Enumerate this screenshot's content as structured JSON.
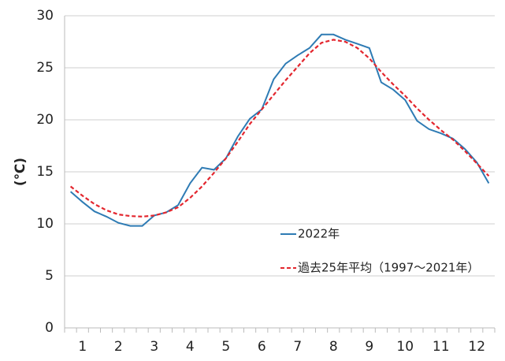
{
  "chart_data": {
    "type": "line",
    "y_label": "(℃)",
    "categories": [
      null,
      "1",
      null,
      null,
      "2",
      null,
      null,
      "3",
      null,
      null,
      "4",
      null,
      null,
      "5",
      null,
      null,
      "6",
      null,
      null,
      "7",
      null,
      null,
      "8",
      null,
      null,
      "9",
      null,
      null,
      "10",
      null,
      null,
      "11",
      null,
      null,
      "12",
      null
    ],
    "series": [
      {
        "name": "2022年",
        "color": "#2e7bb4",
        "dash": false,
        "values": [
          13.1,
          12.1,
          11.2,
          10.7,
          10.1,
          9.8,
          9.8,
          10.8,
          11.1,
          11.8,
          13.9,
          15.4,
          15.2,
          16.3,
          18.4,
          20.1,
          21.0,
          23.9,
          25.4,
          26.2,
          26.9,
          28.2,
          28.2,
          27.7,
          27.3,
          26.9,
          23.6,
          22.9,
          21.9,
          19.9,
          19.1,
          18.7,
          18.2,
          17.2,
          15.9,
          13.9
        ]
      },
      {
        "name": "過去25年平均（1997～2021年）",
        "color": "#e3262e",
        "dash": true,
        "values": [
          13.6,
          12.7,
          11.9,
          11.3,
          10.9,
          10.75,
          10.7,
          10.8,
          11.1,
          11.6,
          12.5,
          13.6,
          14.9,
          16.3,
          17.9,
          19.6,
          21.0,
          22.4,
          23.8,
          25.1,
          26.4,
          27.4,
          27.7,
          27.5,
          26.9,
          25.9,
          24.6,
          23.4,
          22.3,
          21.1,
          20.0,
          19.0,
          18.1,
          17.0,
          15.8,
          14.6
        ]
      }
    ],
    "ylim": [
      0,
      30
    ],
    "yticks": [
      0,
      5,
      10,
      15,
      20,
      25,
      30
    ],
    "grid": true,
    "legend": "lower-right"
  }
}
